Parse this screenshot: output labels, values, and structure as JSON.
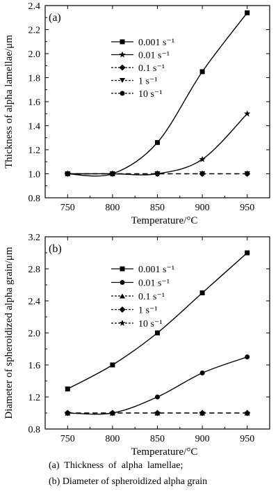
{
  "chart_data": [
    {
      "type": "line",
      "panel_label": "(a)",
      "xlabel": "Temperature/°C",
      "ylabel": "Thickness of alpha lamellae/μm",
      "x": [
        750,
        800,
        850,
        900,
        950
      ],
      "xticks": [
        "750",
        "800",
        "850",
        "900",
        "950"
      ],
      "ylim": [
        0.8,
        2.4
      ],
      "yticks": [
        "0.8",
        "1.0",
        "1.2",
        "1.4",
        "1.6",
        "1.8",
        "2.0",
        "2.2",
        "2.4"
      ],
      "legend_position": "upper-center",
      "series": [
        {
          "name": "0.001 s⁻¹",
          "marker": "square",
          "line": "solid",
          "values": [
            1.0,
            1.0,
            1.26,
            1.85,
            2.34
          ]
        },
        {
          "name": "0.01 s⁻¹",
          "marker": "star",
          "line": "solid",
          "values": [
            1.0,
            1.0,
            1.0,
            1.12,
            1.5
          ]
        },
        {
          "name": "0.1 s⁻¹",
          "marker": "diamond",
          "line": "dashed",
          "values": [
            1.0,
            1.0,
            1.0,
            1.0,
            1.0
          ]
        },
        {
          "name": "1 s⁻¹",
          "marker": "triangle-down",
          "line": "dashed",
          "values": [
            1.0,
            1.0,
            1.0,
            1.0,
            1.0
          ]
        },
        {
          "name": "10 s⁻¹",
          "marker": "circle",
          "line": "dashed",
          "values": [
            1.0,
            1.0,
            1.0,
            1.0,
            1.0
          ]
        }
      ]
    },
    {
      "type": "line",
      "panel_label": "(b)",
      "xlabel": "Temperature/°C",
      "ylabel": "Diameter of spheroidized alpha grain/μm",
      "x": [
        750,
        800,
        850,
        900,
        950
      ],
      "xticks": [
        "750",
        "800",
        "850",
        "900",
        "950"
      ],
      "ylim": [
        0.8,
        3.2
      ],
      "yticks": [
        "0.8",
        "1.2",
        "1.6",
        "2.0",
        "2.4",
        "2.8",
        "3.2"
      ],
      "legend_position": "upper-center",
      "series": [
        {
          "name": "0.001 s⁻¹",
          "marker": "square",
          "line": "solid",
          "values": [
            1.3,
            1.6,
            2.0,
            2.5,
            3.0
          ]
        },
        {
          "name": "0.01 s⁻¹",
          "marker": "circle",
          "line": "solid",
          "values": [
            1.0,
            1.0,
            1.2,
            1.5,
            1.7
          ]
        },
        {
          "name": "0.1 s⁻¹",
          "marker": "triangle-up",
          "line": "dashed",
          "values": [
            1.0,
            1.0,
            1.0,
            1.0,
            1.0
          ]
        },
        {
          "name": "1 s⁻¹",
          "marker": "diamond",
          "line": "dashed",
          "values": [
            1.0,
            1.0,
            1.0,
            1.0,
            1.0
          ]
        },
        {
          "name": "10 s⁻¹",
          "marker": "star",
          "line": "dashed",
          "values": [
            1.0,
            1.0,
            1.0,
            1.0,
            1.0
          ]
        }
      ]
    }
  ],
  "caption": {
    "line_a": "(a)  Thickness  of  alpha  lamellae;",
    "line_b": "(b) Diameter of spheroidized alpha grain"
  }
}
